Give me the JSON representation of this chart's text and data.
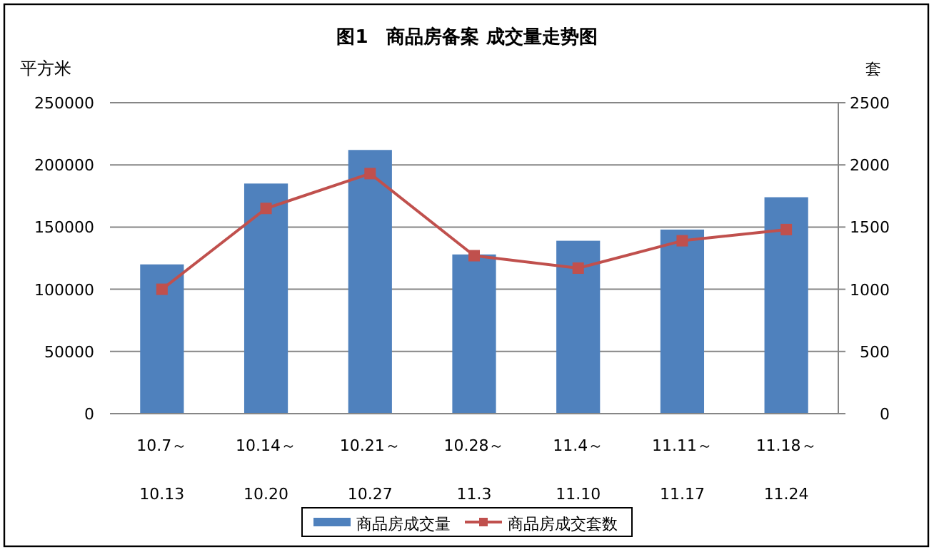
{
  "chart_data": {
    "type": "bar",
    "title": "图1　商品房备案 成交量走势图",
    "ylabel": "平方米",
    "y2label": "套",
    "categories": [
      "10.7～\n10.13",
      "10.14～\n10.20",
      "10.21～\n10.27",
      "10.28～\n11.3",
      "11.4～\n11.10",
      "11.11～\n11.17",
      "11.18～\n11.24"
    ],
    "series": [
      {
        "name": "商品房成交量",
        "color": "#4f81bd",
        "values": [
          120000,
          185000,
          212000,
          128000,
          139000,
          148000,
          174000
        ]
      },
      {
        "name": "商品房成交套数",
        "type": "line",
        "axis": "y2",
        "color": "#c0504d",
        "marker": "square",
        "values": [
          1000,
          1650,
          1930,
          1270,
          1170,
          1390,
          1480
        ]
      }
    ],
    "ylim": [
      0,
      250000
    ],
    "yticks": [
      0,
      50000,
      100000,
      150000,
      200000,
      250000
    ],
    "y2lim": [
      0,
      2500
    ],
    "y2ticks": [
      0,
      500,
      1000,
      1500,
      2000,
      2500
    ],
    "grid": "y",
    "legend": "bottom"
  }
}
